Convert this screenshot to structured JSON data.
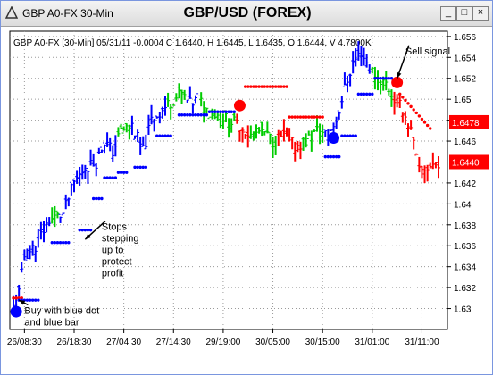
{
  "window": {
    "title": "GBP A0-FX 30-Min",
    "chart_title": "GBP/USD (FOREX)",
    "min_label": "_",
    "max_label": "□",
    "close_label": "×"
  },
  "colors": {
    "up": "#0000ff",
    "mid": "#00cc00",
    "down": "#ff0000",
    "dots_up": "#0000ff",
    "dots_down": "#ff0000",
    "grid": "#9a9a9a",
    "price_box": "#ff0000"
  },
  "chart_data": {
    "type": "bar",
    "info_line": "GBP A0-FX [30-Min] 05/31/11   -0.0004 C 1.6440, H 1.6445, L 1.6435, O 1.6444, V 4.7800K",
    "ylim": [
      1.628,
      1.6565
    ],
    "yticks": [
      1.63,
      1.632,
      1.634,
      1.636,
      1.638,
      1.64,
      1.642,
      1.644,
      1.646,
      1.648,
      1.65,
      1.652,
      1.654,
      1.656
    ],
    "xticks": [
      {
        "i": 4,
        "label": "26/08:30"
      },
      {
        "i": 22,
        "label": "26/18:30"
      },
      {
        "i": 40,
        "label": "27/04:30"
      },
      {
        "i": 58,
        "label": "27/14:30"
      },
      {
        "i": 76,
        "label": "29/19:00"
      },
      {
        "i": 94,
        "label": "30/05:00"
      },
      {
        "i": 112,
        "label": "30/15:00"
      },
      {
        "i": 130,
        "label": "31/01:00"
      },
      {
        "i": 148,
        "label": "31/11:00"
      }
    ],
    "price_labels": [
      {
        "value": 1.6478,
        "label": "1.6478"
      },
      {
        "value": 1.644,
        "label": "1.6440"
      }
    ],
    "signals": [
      {
        "i": 1,
        "value": 1.6297,
        "color": "blue"
      },
      {
        "i": 82,
        "value": 1.6494,
        "color": "red"
      },
      {
        "i": 116,
        "value": 1.6463,
        "color": "blue"
      },
      {
        "i": 139,
        "value": 1.6516,
        "color": "red"
      }
    ],
    "annotations": [
      {
        "i": 4,
        "value": 1.6295,
        "lines": [
          "Buy with blue dot",
          "and blue bar"
        ],
        "arrow_to": {
          "i": 2,
          "value": 1.6308
        }
      },
      {
        "i": 32,
        "value": 1.6375,
        "lines": [
          "Stops",
          "stepping",
          "up to",
          "protect",
          "profit"
        ],
        "arrow_to": {
          "i": 26,
          "value": 1.6366
        }
      },
      {
        "i": 142,
        "value": 1.6543,
        "lines": [
          "Sell signal"
        ],
        "arrow_to": {
          "i": 139,
          "value": 1.652
        }
      }
    ]
  }
}
